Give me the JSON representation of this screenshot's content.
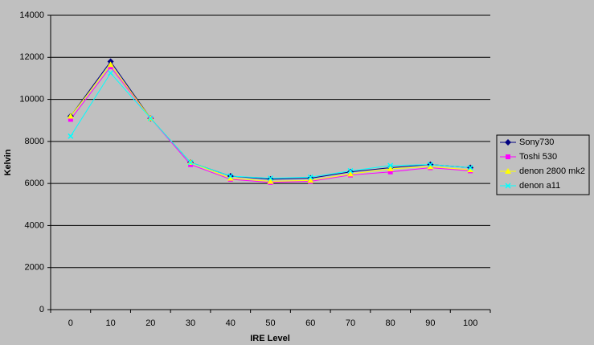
{
  "chart_data": {
    "type": "line",
    "x_label": "IRE Level",
    "y_label": "Kelvin",
    "categories": [
      "0",
      "10",
      "20",
      "30",
      "40",
      "50",
      "60",
      "70",
      "80",
      "90",
      "100"
    ],
    "series": [
      {
        "name": "Sony730",
        "color": "#000080",
        "marker": "diamond",
        "values": [
          9200,
          11800,
          9100,
          7000,
          6350,
          6200,
          6250,
          6550,
          6750,
          6900,
          6750
        ]
      },
      {
        "name": "Toshi 530",
        "color": "#ff00ff",
        "marker": "square",
        "values": [
          9050,
          11550,
          9100,
          6900,
          6200,
          6050,
          6100,
          6400,
          6550,
          6750,
          6600
        ]
      },
      {
        "name": "denon 2800 mk2",
        "color": "#ffff00",
        "marker": "triangle",
        "values": [
          9200,
          11650,
          9100,
          7000,
          6250,
          6100,
          6150,
          6450,
          6700,
          6800,
          6650
        ]
      },
      {
        "name": "denon a11",
        "color": "#00ffff",
        "marker": "x",
        "values": [
          8250,
          11250,
          9100,
          7000,
          6350,
          6250,
          6300,
          6600,
          6850,
          6900,
          6750
        ]
      }
    ],
    "ylim": [
      0,
      14000
    ],
    "yticks": [
      0,
      2000,
      4000,
      6000,
      8000,
      10000,
      12000,
      14000
    ],
    "grid": true,
    "legend": "right"
  }
}
